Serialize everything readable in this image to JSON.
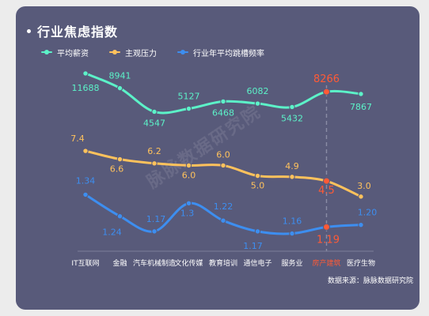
{
  "page": {
    "title": "行业焦虑指数",
    "source": "数据来源：脉脉数据研究院",
    "watermark": "脉脉数据研究院"
  },
  "chart_data": {
    "type": "line",
    "title": "行业焦虑指数",
    "categories": [
      "IT互联网",
      "金融",
      "汽车机械制造",
      "文化传媒",
      "教育培训",
      "通信电子",
      "服务业",
      "房产建筑",
      "医疗生物"
    ],
    "highlight_category": "房产建筑",
    "series": [
      {
        "name": "平均薪资",
        "color": "#5cf2c8",
        "values": [
          11688,
          8941,
          4547,
          5127,
          6468,
          6082,
          5432,
          8266,
          7867
        ],
        "labels": [
          "11688",
          "8941",
          "4547",
          "5127",
          "6468",
          "6082",
          "5432",
          "8266",
          "7867"
        ],
        "range": [
          3000,
          13000
        ]
      },
      {
        "name": "主观压力",
        "color": "#ffc25c",
        "values": [
          7.4,
          6.6,
          6.2,
          6.0,
          6.0,
          5.0,
          4.9,
          4.5,
          3.0
        ],
        "labels": [
          "7.4",
          "6.6",
          "6.2",
          "6.0",
          "6.0",
          "5.0",
          "4.9",
          "4.5",
          "3.0"
        ],
        "range": [
          2,
          9
        ]
      },
      {
        "name": "行业年平均跳槽频率",
        "color": "#3d8ef0",
        "values": [
          1.34,
          1.24,
          1.17,
          1.3,
          1.22,
          1.17,
          1.16,
          1.19,
          1.2
        ],
        "labels": [
          "1.34",
          "1.24",
          "1.17",
          "1.3",
          "1.22",
          "1.17",
          "1.16",
          "1.19",
          "1.20"
        ],
        "range": [
          1.1,
          1.4
        ]
      }
    ],
    "highlight_color": "#ff5a36",
    "grid": false
  }
}
